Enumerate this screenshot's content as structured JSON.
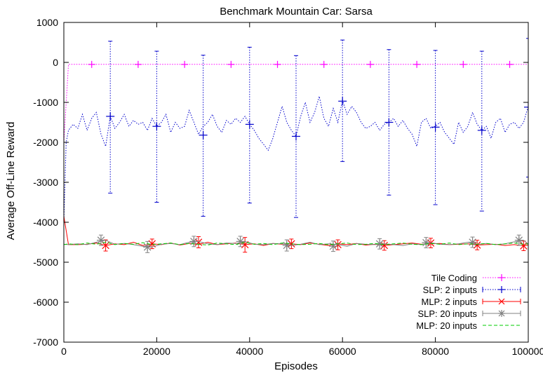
{
  "chart_data": {
    "type": "line",
    "title": "Benchmark Mountain Car: Sarsa",
    "xlabel": "Episodes",
    "ylabel": "Average Off-Line Reward",
    "xlim": [
      0,
      100000
    ],
    "ylim": [
      -7000,
      1000
    ],
    "xticks": [
      0,
      20000,
      40000,
      60000,
      80000,
      100000
    ],
    "yticks": [
      1000,
      0,
      -1000,
      -2000,
      -3000,
      -4000,
      -5000,
      -6000,
      -7000
    ],
    "grid": false,
    "legend_position": "bottom-right",
    "series": [
      {
        "name": "Tile Coding",
        "color": "#ff00ff",
        "line_style": "dotted",
        "marker": "plus",
        "x": [
          0,
          1000,
          6000,
          16000,
          26000,
          36000,
          46000,
          56000,
          66000,
          76000,
          86000,
          96000,
          100000
        ],
        "y": [
          -2000,
          -50,
          -50,
          -50,
          -50,
          -50,
          -50,
          -50,
          -50,
          -50,
          -50,
          -50,
          -50
        ],
        "markers": [
          {
            "x": 6000,
            "y": -50
          },
          {
            "x": 16000,
            "y": -50
          },
          {
            "x": 26000,
            "y": -50
          },
          {
            "x": 36000,
            "y": -50
          },
          {
            "x": 46000,
            "y": -50
          },
          {
            "x": 56000,
            "y": -50
          },
          {
            "x": 66000,
            "y": -50
          },
          {
            "x": 76000,
            "y": -50
          },
          {
            "x": 86000,
            "y": -50
          },
          {
            "x": 96000,
            "y": -50
          }
        ]
      },
      {
        "name": "SLP:   2 inputs",
        "color": "#0000cc",
        "line_style": "dotted",
        "marker": "plus",
        "x": [
          0,
          500,
          1000,
          2000,
          3000,
          4000,
          5000,
          6000,
          7000,
          8000,
          9000,
          10000,
          11000,
          12000,
          13000,
          14000,
          15000,
          16000,
          17000,
          18000,
          19000,
          20000,
          21000,
          22000,
          23000,
          24000,
          25000,
          26000,
          27000,
          28000,
          29000,
          30000,
          31000,
          32000,
          33000,
          34000,
          35000,
          36000,
          37000,
          38000,
          39000,
          40000,
          41000,
          42000,
          43000,
          44000,
          45000,
          46000,
          47000,
          48000,
          49000,
          50000,
          51000,
          52000,
          53000,
          54000,
          55000,
          56000,
          57000,
          58000,
          59000,
          60000,
          61000,
          62000,
          63000,
          64000,
          65000,
          66000,
          67000,
          68000,
          69000,
          70000,
          71000,
          72000,
          73000,
          74000,
          75000,
          76000,
          77000,
          78000,
          79000,
          80000,
          81000,
          82000,
          83000,
          84000,
          85000,
          86000,
          87000,
          88000,
          89000,
          90000,
          91000,
          92000,
          93000,
          94000,
          95000,
          96000,
          97000,
          98000,
          99000,
          100000
        ],
        "y": [
          -4000,
          -2000,
          -1700,
          -1550,
          -1650,
          -1300,
          -1700,
          -1400,
          -1250,
          -1800,
          -2100,
          -1350,
          -1650,
          -1500,
          -1300,
          -1600,
          -1450,
          -1550,
          -1500,
          -1700,
          -1400,
          -1600,
          -1500,
          -1300,
          -1750,
          -1500,
          -1650,
          -1600,
          -1200,
          -1500,
          -1800,
          -1600,
          -1500,
          -1300,
          -1600,
          -1750,
          -1450,
          -1550,
          -1400,
          -1500,
          -1350,
          -1550,
          -1700,
          -1900,
          -2050,
          -2200,
          -1900,
          -1500,
          -1100,
          -1500,
          -1700,
          -1850,
          -1350,
          -1000,
          -1500,
          -1250,
          -850,
          -1400,
          -1600,
          -1150,
          -1500,
          -950,
          -1300,
          -1100,
          -1250,
          -1500,
          -1650,
          -1600,
          -1500,
          -1700,
          -1550,
          -1500,
          -1400,
          -1600,
          -1450,
          -1650,
          -1800,
          -2100,
          -1500,
          -1400,
          -1650,
          -1600,
          -1500,
          -1750,
          -1900,
          -2050,
          -1500,
          -1750,
          -1600,
          -1250,
          -1550,
          -1700,
          -1600,
          -1900,
          -1500,
          -1400,
          -1750,
          -1550,
          -1500,
          -1650,
          -1500,
          -1100
        ],
        "errorbars": [
          {
            "x": 10000,
            "y": -1350,
            "low": -3270,
            "high": 530
          },
          {
            "x": 20000,
            "y": -1600,
            "low": -3500,
            "high": 280
          },
          {
            "x": 30000,
            "y": -1820,
            "low": -3850,
            "high": 180
          },
          {
            "x": 40000,
            "y": -1550,
            "low": -3520,
            "high": 380
          },
          {
            "x": 50000,
            "y": -1850,
            "low": -3880,
            "high": 170
          },
          {
            "x": 60000,
            "y": -970,
            "low": -2480,
            "high": 560
          },
          {
            "x": 70000,
            "y": -1500,
            "low": -3320,
            "high": 320
          },
          {
            "x": 80000,
            "y": -1620,
            "low": -3560,
            "high": 300
          },
          {
            "x": 90000,
            "y": -1700,
            "low": -3720,
            "high": 280
          },
          {
            "x": 100000,
            "y": -1120,
            "low": -2870,
            "high": 600
          }
        ]
      },
      {
        "name": "MLP:   2 inputs",
        "color": "#ff0000",
        "line_style": "solid",
        "marker": "cross",
        "x": [
          0,
          1000,
          3000,
          5000,
          7000,
          9000,
          11000,
          13000,
          15000,
          17000,
          19000,
          21000,
          23000,
          25000,
          27000,
          29000,
          31000,
          33000,
          35000,
          37000,
          39000,
          41000,
          43000,
          45000,
          47000,
          49000,
          51000,
          53000,
          55000,
          57000,
          59000,
          61000,
          63000,
          65000,
          67000,
          69000,
          71000,
          73000,
          75000,
          77000,
          79000,
          81000,
          83000,
          85000,
          87000,
          89000,
          91000,
          93000,
          95000,
          97000,
          99000,
          100000
        ],
        "y": [
          -3850,
          -4560,
          -4560,
          -4550,
          -4520,
          -4580,
          -4540,
          -4560,
          -4500,
          -4580,
          -4540,
          -4560,
          -4520,
          -4570,
          -4530,
          -4550,
          -4500,
          -4560,
          -4540,
          -4520,
          -4560,
          -4540,
          -4580,
          -4530,
          -4550,
          -4540,
          -4560,
          -4520,
          -4550,
          -4580,
          -4540,
          -4560,
          -4530,
          -4570,
          -4550,
          -4580,
          -4560,
          -4540,
          -4520,
          -4550,
          -4540,
          -4530,
          -4560,
          -4550,
          -4540,
          -4570,
          -4560,
          -4550,
          -4580,
          -4560,
          -4590,
          -4570
        ],
        "errorbars": [
          {
            "x": 9000,
            "y": -4580,
            "low": -4720,
            "high": -4440
          },
          {
            "x": 19000,
            "y": -4540,
            "low": -4660,
            "high": -4420
          },
          {
            "x": 29000,
            "y": -4500,
            "low": -4640,
            "high": -4360
          },
          {
            "x": 39000,
            "y": -4560,
            "low": -4750,
            "high": -4380
          },
          {
            "x": 49000,
            "y": -4540,
            "low": -4660,
            "high": -4420
          },
          {
            "x": 59000,
            "y": -4560,
            "low": -4690,
            "high": -4440
          },
          {
            "x": 69000,
            "y": -4580,
            "low": -4700,
            "high": -4460
          },
          {
            "x": 79000,
            "y": -4520,
            "low": -4640,
            "high": -4400
          },
          {
            "x": 89000,
            "y": -4570,
            "low": -4690,
            "high": -4450
          },
          {
            "x": 99000,
            "y": -4590,
            "low": -4710,
            "high": -4470
          }
        ]
      },
      {
        "name": "SLP: 20 inputs",
        "color": "#808080",
        "line_style": "solid",
        "marker": "star",
        "x": [
          0,
          1000,
          3000,
          5000,
          7000,
          9000,
          11000,
          13000,
          15000,
          17000,
          19000,
          21000,
          23000,
          25000,
          27000,
          29000,
          31000,
          33000,
          35000,
          37000,
          39000,
          41000,
          43000,
          45000,
          47000,
          49000,
          51000,
          53000,
          55000,
          57000,
          59000,
          61000,
          63000,
          65000,
          67000,
          69000,
          71000,
          73000,
          75000,
          77000,
          79000,
          81000,
          83000,
          85000,
          87000,
          89000,
          91000,
          93000,
          95000,
          97000,
          99000,
          100000
        ],
        "y": [
          -4550,
          -4560,
          -4540,
          -4560,
          -4500,
          -4450,
          -4550,
          -4530,
          -4560,
          -4600,
          -4620,
          -4550,
          -4530,
          -4560,
          -4500,
          -4480,
          -4540,
          -4560,
          -4520,
          -4530,
          -4480,
          -4550,
          -4560,
          -4530,
          -4540,
          -4580,
          -4550,
          -4500,
          -4560,
          -4540,
          -4560,
          -4600,
          -4530,
          -4550,
          -4560,
          -4540,
          -4560,
          -4580,
          -4540,
          -4560,
          -4510,
          -4550,
          -4560,
          -4540,
          -4500,
          -4550,
          -4530,
          -4560,
          -4540,
          -4490,
          -4450,
          -4550
        ],
        "errorbars": [
          {
            "x": 8000,
            "y": -4450,
            "low": -4580,
            "high": -4320
          },
          {
            "x": 18000,
            "y": -4620,
            "low": -4760,
            "high": -4480
          },
          {
            "x": 28000,
            "y": -4480,
            "low": -4610,
            "high": -4350
          },
          {
            "x": 38000,
            "y": -4480,
            "low": -4610,
            "high": -4350
          },
          {
            "x": 48000,
            "y": -4580,
            "low": -4720,
            "high": -4440
          },
          {
            "x": 58000,
            "y": -4600,
            "low": -4730,
            "high": -4470
          },
          {
            "x": 68000,
            "y": -4540,
            "low": -4670,
            "high": -4410
          },
          {
            "x": 78000,
            "y": -4510,
            "low": -4640,
            "high": -4380
          },
          {
            "x": 88000,
            "y": -4500,
            "low": -4630,
            "high": -4370
          },
          {
            "x": 98000,
            "y": -4450,
            "low": -4580,
            "high": -4320
          }
        ]
      },
      {
        "name": "MLP: 20 inputs",
        "color": "#00cc00",
        "line_style": "dashed",
        "marker": "none",
        "x": [
          0,
          1000,
          3000,
          5000,
          7000,
          9000,
          11000,
          13000,
          15000,
          17000,
          19000,
          21000,
          23000,
          25000,
          27000,
          29000,
          31000,
          33000,
          35000,
          37000,
          39000,
          41000,
          43000,
          45000,
          47000,
          49000,
          51000,
          53000,
          55000,
          57000,
          59000,
          61000,
          63000,
          65000,
          67000,
          69000,
          71000,
          73000,
          75000,
          77000,
          79000,
          81000,
          83000,
          85000,
          87000,
          89000,
          91000,
          93000,
          95000,
          97000,
          99000,
          100000
        ],
        "y": [
          -4560,
          -4540,
          -4560,
          -4520,
          -4550,
          -4500,
          -4560,
          -4530,
          -4550,
          -4510,
          -4560,
          -4540,
          -4520,
          -4560,
          -4530,
          -4550,
          -4570,
          -4520,
          -4540,
          -4560,
          -4500,
          -4550,
          -4530,
          -4560,
          -4520,
          -4540,
          -4560,
          -4550,
          -4530,
          -4560,
          -4540,
          -4520,
          -4560,
          -4550,
          -4530,
          -4560,
          -4540,
          -4520,
          -4550,
          -4560,
          -4530,
          -4550,
          -4520,
          -4560,
          -4540,
          -4550,
          -4530,
          -4560,
          -4540,
          -4520,
          -4550,
          -4540
        ]
      }
    ]
  }
}
